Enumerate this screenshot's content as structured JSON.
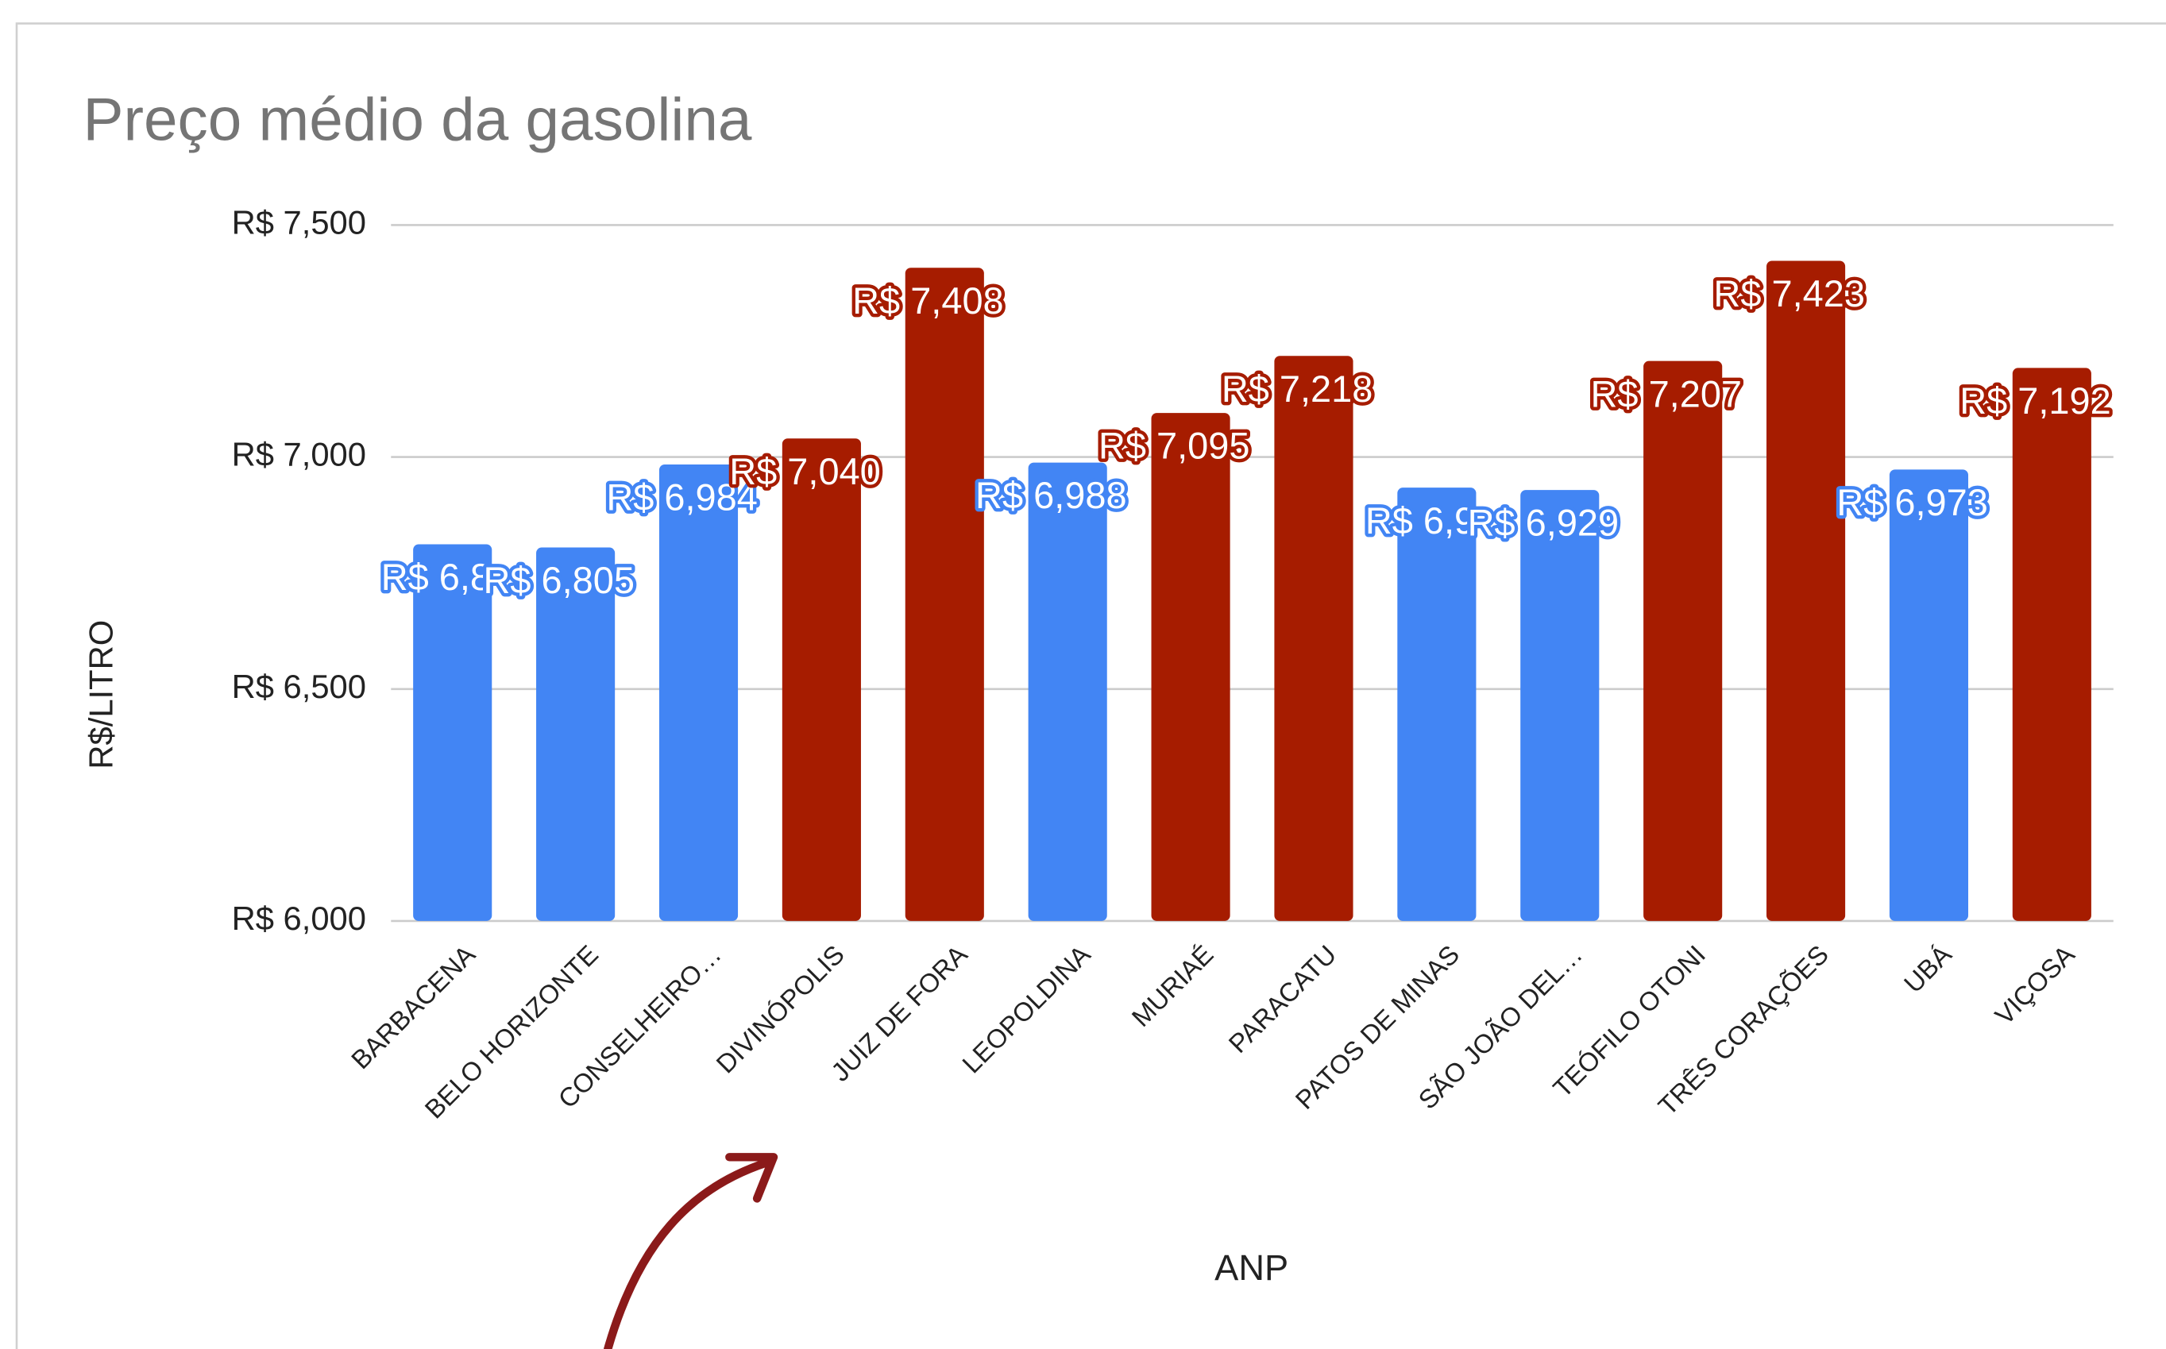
{
  "chart_data": {
    "type": "bar",
    "title": "Preço médio da gasolina",
    "y_label": "R$/LITRO",
    "x_label": "ANP",
    "categories": [
      "BARBACENA",
      "BELO HORIZONTE",
      "CONSELHEIRO…",
      "DIVINÓPOLIS",
      "JUIZ DE FORA",
      "LEOPOLDINA",
      "MURIAÉ",
      "PARACATU",
      "PATOS DE MINAS",
      "SÃO JOÃO DEL…",
      "TEÓFILO OTONI",
      "TRÊS CORAÇÕES",
      "UBÁ",
      "VIÇOSA"
    ],
    "values": [
      6.812,
      6.805,
      6.984,
      7.04,
      7.408,
      6.988,
      7.095,
      7.218,
      6.934,
      6.929,
      7.207,
      7.423,
      6.973,
      7.192
    ],
    "value_labels": [
      "R$ 6,8",
      "R$ 6,805",
      "R$ 6,984",
      "R$ 7,040",
      "R$ 7,408",
      "R$ 6,988",
      "R$ 7,095",
      "R$ 7,218",
      "R$ 6,9",
      "R$ 6,929",
      "R$ 7,207",
      "R$ 7,423",
      "R$ 6,973",
      "R$ 7,192"
    ],
    "colors": [
      "#4285f4",
      "#4285f4",
      "#4285f4",
      "#a61c00",
      "#a61c00",
      "#4285f4",
      "#a61c00",
      "#a61c00",
      "#4285f4",
      "#4285f4",
      "#a61c00",
      "#a61c00",
      "#4285f4",
      "#a61c00"
    ],
    "ylim": [
      6,
      7.5
    ],
    "yticks": [
      {
        "value": 6,
        "label": "R$ 6,000"
      },
      {
        "value": 6.5,
        "label": "R$ 6,500"
      },
      {
        "value": 7,
        "label": "R$ 7,000"
      },
      {
        "value": 7.5,
        "label": "R$ 7,500"
      }
    ],
    "grid": true
  }
}
